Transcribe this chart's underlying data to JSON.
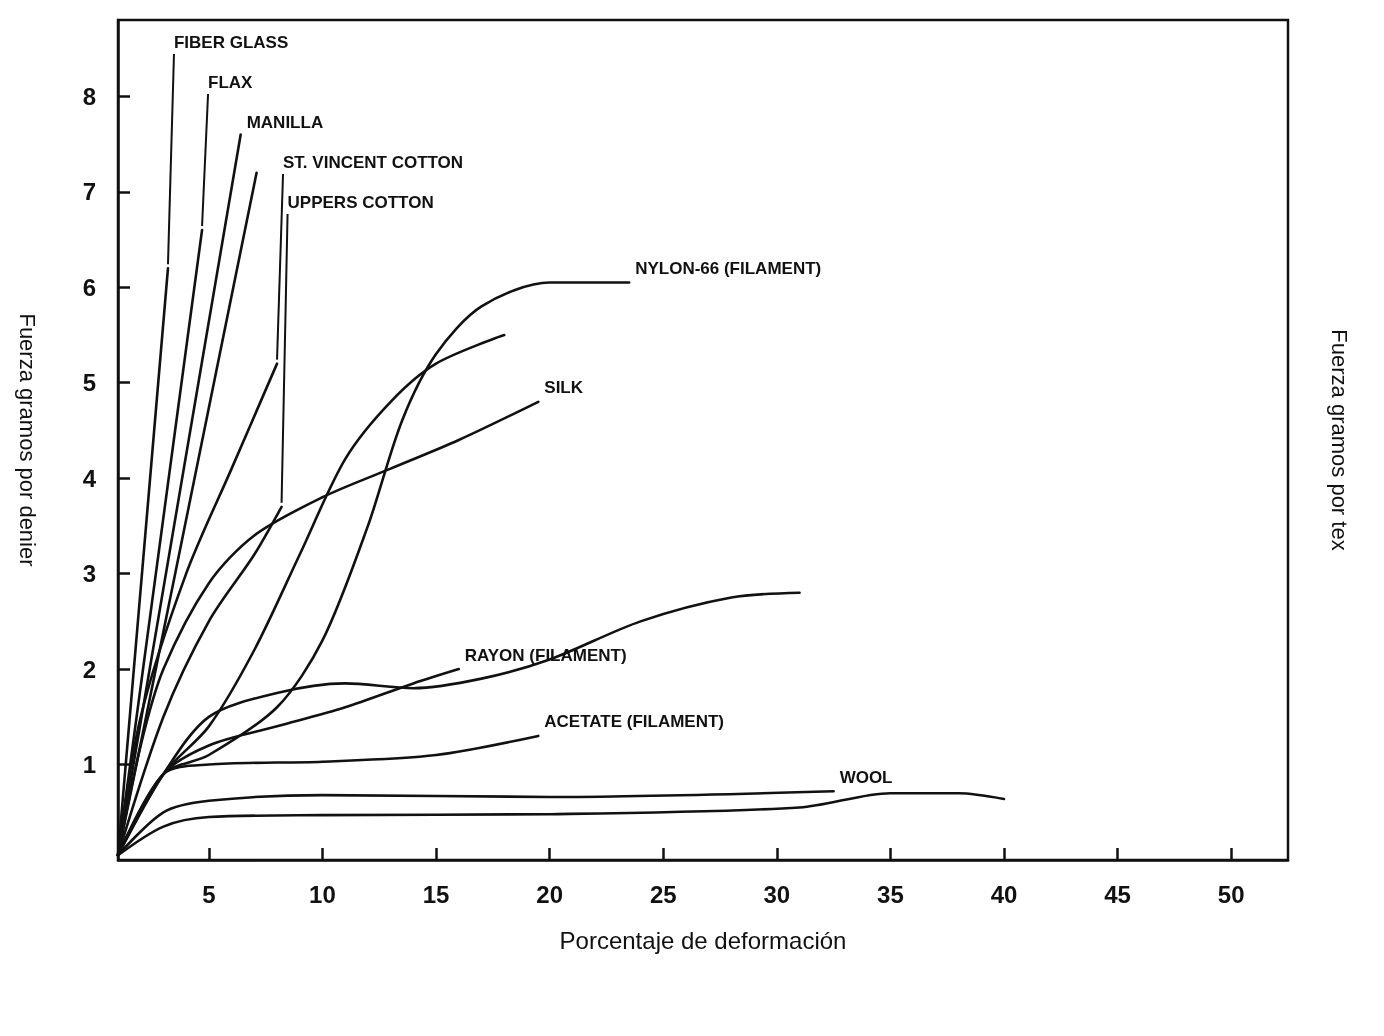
{
  "chart_data": {
    "type": "line",
    "xlabel": "Porcentaje de deformación",
    "ylabel": "Fuerza gramos por denier",
    "y2label": "Fuerza gramos por tex",
    "xlim": [
      1,
      52.5
    ],
    "xticks": [
      5,
      10,
      15,
      20,
      25,
      30,
      35,
      40,
      45,
      50
    ],
    "ylim": [
      0,
      8.8
    ],
    "yticks": [
      1,
      2,
      3,
      4,
      5,
      6,
      7,
      8
    ],
    "grid": false,
    "legend": false,
    "marker": "none",
    "line_style": "solid",
    "series": [
      {
        "name": "FIBER GLASS",
        "color": "#111111",
        "x": [
          1,
          3.2
        ],
        "values": [
          0.05,
          6.2
        ]
      },
      {
        "name": "FLAX",
        "color": "#111111",
        "x": [
          1,
          4.7
        ],
        "values": [
          0.05,
          6.6
        ]
      },
      {
        "name": "MANILLA",
        "color": "#111111",
        "x": [
          1,
          6.4
        ],
        "values": [
          0.05,
          7.6
        ]
      },
      {
        "color": "#111111",
        "x": [
          1,
          7.1
        ],
        "values": [
          0.05,
          7.2
        ]
      },
      {
        "name": "ST. VINCENT COTTON",
        "color": "#111111",
        "x": [
          1,
          2,
          4,
          6,
          8
        ],
        "values": [
          0.05,
          1.5,
          3.0,
          4.1,
          5.2
        ]
      },
      {
        "name": "UPPERS COTTON",
        "color": "#111111",
        "x": [
          1,
          3,
          5,
          7,
          8.2
        ],
        "values": [
          0.05,
          1.5,
          2.5,
          3.2,
          3.7
        ]
      },
      {
        "name": "NYLON-66 (FILAMENT)",
        "color": "#111111",
        "x": [
          1,
          3,
          5,
          8,
          10,
          12,
          13.5,
          15,
          17,
          20,
          23.5
        ],
        "values": [
          0.05,
          0.9,
          1.1,
          1.6,
          2.3,
          3.5,
          4.6,
          5.3,
          5.8,
          6.05,
          6.05
        ]
      },
      {
        "color": "#111111",
        "x": [
          1,
          3,
          5,
          7,
          9,
          11,
          13,
          15,
          18
        ],
        "values": [
          0.05,
          0.9,
          1.4,
          2.2,
          3.2,
          4.2,
          4.8,
          5.2,
          5.5
        ]
      },
      {
        "name": "SILK",
        "color": "#111111",
        "x": [
          1,
          2,
          3,
          5,
          7,
          10,
          13,
          16,
          19.5
        ],
        "values": [
          0.05,
          1.2,
          2.0,
          2.9,
          3.4,
          3.8,
          4.1,
          4.4,
          4.8
        ]
      },
      {
        "name": "RAYON (FILAMENT)",
        "color": "#111111",
        "x": [
          1,
          3,
          5,
          8,
          11,
          14,
          16
        ],
        "values": [
          0.05,
          0.9,
          1.2,
          1.4,
          1.6,
          1.85,
          2.0
        ]
      },
      {
        "color": "#111111",
        "x": [
          1,
          3,
          5,
          8,
          11,
          14,
          17,
          20,
          24,
          28,
          31
        ],
        "values": [
          0.05,
          0.9,
          1.5,
          1.75,
          1.85,
          1.8,
          1.9,
          2.1,
          2.5,
          2.75,
          2.8
        ]
      },
      {
        "name": "ACETATE (FILAMENT)",
        "color": "#111111",
        "x": [
          1,
          3,
          5,
          10,
          15,
          19.5
        ],
        "values": [
          0.05,
          0.9,
          1.0,
          1.03,
          1.1,
          1.3
        ]
      },
      {
        "name": "WOOL",
        "color": "#111111",
        "x": [
          1,
          3,
          5,
          10,
          20,
          32.5
        ],
        "values": [
          0.05,
          0.5,
          0.62,
          0.68,
          0.66,
          0.72
        ]
      },
      {
        "color": "#111111",
        "x": [
          1,
          3,
          5,
          10,
          20,
          31,
          35,
          38,
          40
        ],
        "values": [
          0.05,
          0.35,
          0.45,
          0.47,
          0.48,
          0.55,
          0.7,
          0.7,
          0.64
        ]
      }
    ]
  }
}
